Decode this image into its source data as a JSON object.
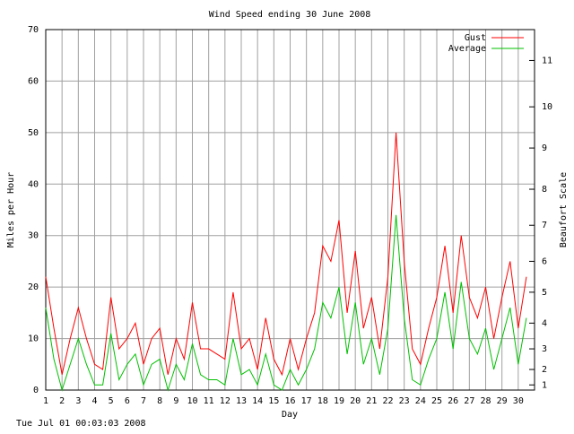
{
  "chart_data": {
    "type": "line",
    "title": "Wind Speed ending 30 June 2008",
    "xlabel": "Day",
    "ylabel": "Miles per Hour",
    "y2label": "Beaufort Scale",
    "footer": "Tue Jul 01 00:03:03 2008",
    "x": [
      1,
      1.5,
      2,
      2.5,
      3,
      3.5,
      4,
      4.5,
      5,
      5.5,
      6,
      6.5,
      7,
      7.5,
      8,
      8.5,
      9,
      9.5,
      10,
      10.5,
      11,
      11.5,
      12,
      12.5,
      13,
      13.5,
      14,
      14.5,
      15,
      15.5,
      16,
      16.5,
      17,
      17.5,
      18,
      18.5,
      19,
      19.5,
      20,
      20.5,
      21,
      21.5,
      22,
      22.5,
      23,
      23.5,
      24,
      24.5,
      25,
      25.5,
      26,
      26.5,
      27,
      27.5,
      28,
      28.5,
      29,
      29.5,
      30,
      30.5
    ],
    "series": [
      {
        "name": "Gust",
        "color": "#ff0000",
        "values": [
          22,
          12,
          3,
          10,
          16,
          10,
          5,
          4,
          18,
          8,
          10,
          13,
          5,
          10,
          12,
          3,
          10,
          6,
          17,
          8,
          8,
          7,
          6,
          19,
          8,
          10,
          4,
          14,
          6,
          3,
          10,
          4,
          10,
          15,
          28,
          25,
          33,
          15,
          27,
          12,
          18,
          8,
          22,
          50,
          25,
          8,
          5,
          12,
          18,
          28,
          15,
          30,
          18,
          14,
          20,
          10,
          18,
          25,
          12,
          22
        ]
      },
      {
        "name": "Average",
        "color": "#00c000",
        "values": [
          16,
          6,
          0,
          5,
          10,
          5,
          1,
          1,
          11,
          2,
          5,
          7,
          1,
          5,
          6,
          0,
          5,
          2,
          9,
          3,
          2,
          2,
          1,
          10,
          3,
          4,
          1,
          7,
          1,
          0,
          4,
          1,
          4,
          8,
          17,
          14,
          20,
          7,
          17,
          5,
          10,
          3,
          12,
          34,
          14,
          2,
          1,
          6,
          10,
          19,
          8,
          21,
          10,
          7,
          12,
          4,
          10,
          16,
          5,
          14
        ]
      }
    ],
    "xlim": [
      1,
      31
    ],
    "xticks": [
      1,
      2,
      3,
      4,
      5,
      6,
      7,
      8,
      9,
      10,
      11,
      12,
      13,
      14,
      15,
      16,
      17,
      18,
      19,
      20,
      21,
      22,
      23,
      24,
      25,
      26,
      27,
      28,
      29,
      30
    ],
    "ylim": [
      0,
      70
    ],
    "yticks": [
      0,
      10,
      20,
      30,
      40,
      50,
      60,
      70
    ],
    "y2lim": [
      0,
      70
    ],
    "y2ticks": [
      1,
      {
        "value": 4,
        "label": "2"
      },
      {
        "value": 8,
        "label": "3"
      },
      {
        "value": 13,
        "label": "4"
      },
      {
        "value": 19,
        "label": "5"
      },
      {
        "value": 25,
        "label": "6"
      },
      {
        "value": 32,
        "label": "7"
      },
      {
        "value": 39,
        "label": "8"
      },
      {
        "value": 47,
        "label": "9"
      },
      {
        "value": 55,
        "label": "10"
      },
      {
        "value": 64,
        "label": "11"
      }
    ],
    "grid": true,
    "legend": "top-right"
  }
}
